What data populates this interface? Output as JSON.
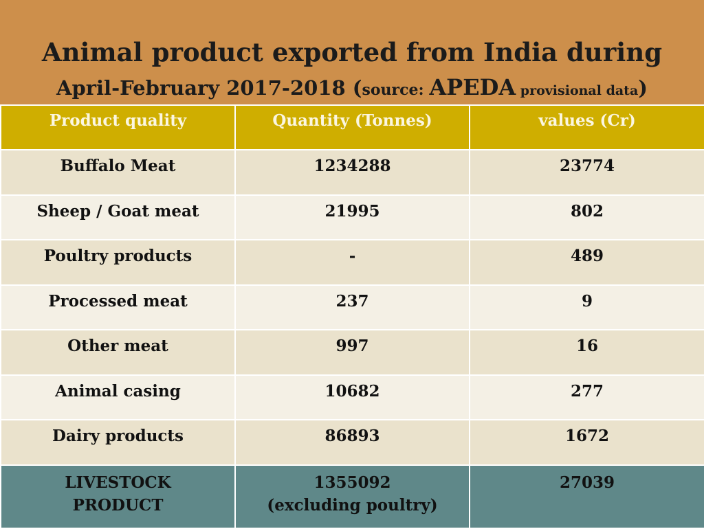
{
  "title": {
    "line1": "Animal product exported from India during",
    "line2_period": "April-February 2017-2018 (",
    "line2_source": "source: ",
    "line2_apeda": "APEDA",
    "line2_provisional": " provisional data",
    "line2_close": ")"
  },
  "table": {
    "headers": [
      "Product quality",
      "Quantity (Tonnes)",
      "values (Cr)"
    ],
    "rows": [
      {
        "product": "Buffalo Meat",
        "quantity": "1234288",
        "value": "23774"
      },
      {
        "product": "Sheep / Goat meat",
        "quantity": "21995",
        "value": "802"
      },
      {
        "product": "Poultry products",
        "quantity": "-",
        "value": "489"
      },
      {
        "product": "Processed meat",
        "quantity": "237",
        "value": "9"
      },
      {
        "product": "Other meat",
        "quantity": "997",
        "value": "16"
      },
      {
        "product": "Animal casing",
        "quantity": "10682",
        "value": "277"
      },
      {
        "product": "Dairy products",
        "quantity": "86893",
        "value": "1672"
      }
    ],
    "total": {
      "product_line1": "LIVESTOCK",
      "product_line2": "PRODUCT",
      "quantity_line1": "1355092",
      "quantity_line2": "(excluding poultry)",
      "value": "27039"
    }
  },
  "colors": {
    "title_bg": "#cd8f4b",
    "header_bg": "#cfae00",
    "header_text": "#fbf6e0",
    "row_odd_bg": "#eae2cc",
    "row_even_bg": "#f4f0e5",
    "total_bg": "#5f8889"
  }
}
